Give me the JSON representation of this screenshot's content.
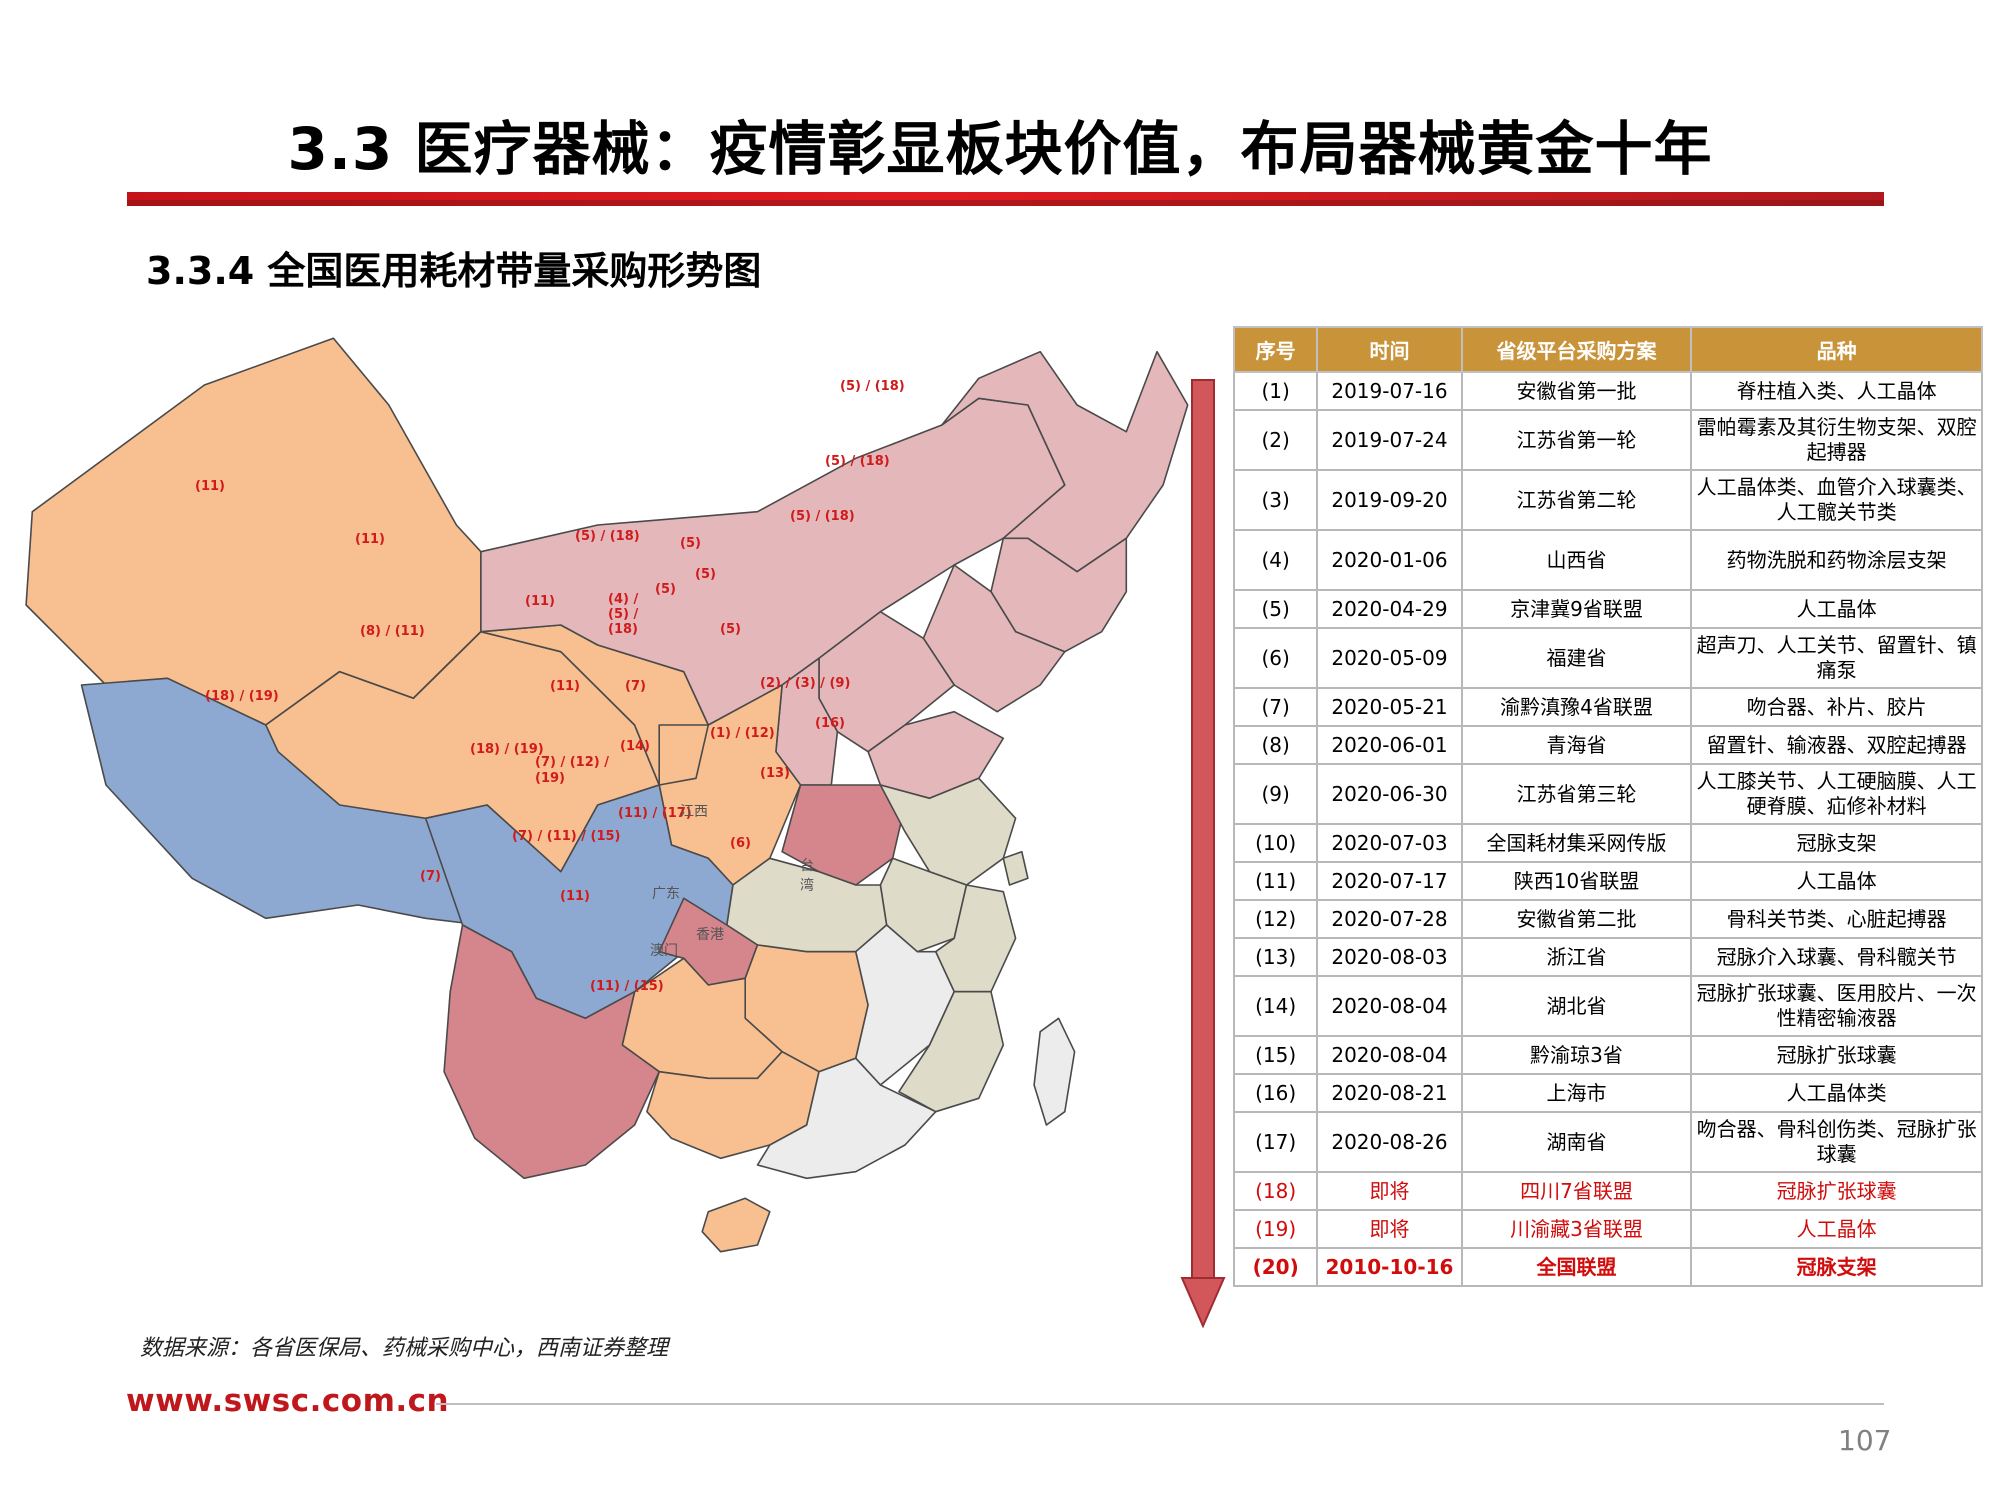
{
  "header": {
    "title": "3.3 医疗器械：疫情彰显板块价值，布局器械黄金十年",
    "subtitle": "3.3.4 全国医用耗材带量采购形势图"
  },
  "map": {
    "labels": {
      "xinjiang": "(11)",
      "qinghai": "(8) / (11)",
      "tibet": "(18) / (19)",
      "gansu": "(11)",
      "ningxia": "(11)",
      "shaanxi": "(11)",
      "inner_mongolia": "(5) / (18)",
      "heilongjiang": "(5) / (18)",
      "jilin": "(5) / (18)",
      "liaoning": "(5) / (18)",
      "shanxi_a": "(4) /",
      "shanxi_b": "(5) /",
      "shanxi_c": "(18)",
      "beijing": "(5)",
      "tianjin": "(5)",
      "hebei": "(5)",
      "shandong": "(5)",
      "henan": "(7)",
      "jiangsu": "(2) / (3) / (9)",
      "anhui": "(1) / (12)",
      "shanghai": "(16)",
      "zhejiang": "(13)",
      "hubei": "(14)",
      "sichuan": "(18) / (19)",
      "chongqing_a": "(7) / (12) /",
      "chongqing_b": "(19)",
      "guizhou": "(7) / (11) / (15)",
      "hunan": "(11) / (17)",
      "jiangxi_name": "江西",
      "fujian": "(6)",
      "yunnan": "(7)",
      "guangxi": "(11)",
      "guangdong_name": "广东",
      "hongkong_name": "香港",
      "macau_name": "澳门",
      "taiwan_name_a": "台",
      "taiwan_name_b": "湾",
      "hainan": "(11) / (15)"
    },
    "colors": {
      "north": "#e4b8bb",
      "west_orange": "#f8bf90",
      "blue": "#8da9d1",
      "dark_red": "#d4868c",
      "khaki": "#dedbc8",
      "grey": "#ececec"
    }
  },
  "table": {
    "headers": [
      "序号",
      "时间",
      "省级平台采购方案",
      "品种"
    ],
    "rows": [
      {
        "no": "(1)",
        "date": "2019-07-16",
        "province": "安徽省第一批",
        "type": "脊柱植入类、人工晶体"
      },
      {
        "no": "(2)",
        "date": "2019-07-24",
        "province": "江苏省第一轮",
        "type": "雷帕霉素及其衍生物支架、双腔起搏器"
      },
      {
        "no": "(3)",
        "date": "2019-09-20",
        "province": "江苏省第二轮",
        "type": "人工晶体类、血管介入球囊类、人工髋关节类"
      },
      {
        "no": "(4)",
        "date": "2020-01-06",
        "province": "山西省",
        "type": "药物洗脱和药物涂层支架"
      },
      {
        "no": "(5)",
        "date": "2020-04-29",
        "province": "京津冀9省联盟",
        "type": "人工晶体"
      },
      {
        "no": "(6)",
        "date": "2020-05-09",
        "province": "福建省",
        "type": "超声刀、人工关节、留置针、镇痛泵"
      },
      {
        "no": "(7)",
        "date": "2020-05-21",
        "province": "渝黔滇豫4省联盟",
        "type": "吻合器、补片、胶片"
      },
      {
        "no": "(8)",
        "date": "2020-06-01",
        "province": "青海省",
        "type": "留置针、输液器、双腔起搏器"
      },
      {
        "no": "(9)",
        "date": "2020-06-30",
        "province": "江苏省第三轮",
        "type": "人工膝关节、人工硬脑膜、人工硬脊膜、疝修补材料"
      },
      {
        "no": "(10)",
        "date": "2020-07-03",
        "province": "全国耗材集采网传版",
        "type": "冠脉支架"
      },
      {
        "no": "(11)",
        "date": "2020-07-17",
        "province": "陕西10省联盟",
        "type": "人工晶体"
      },
      {
        "no": "(12)",
        "date": "2020-07-28",
        "province": "安徽省第二批",
        "type": "骨科关节类、心脏起搏器"
      },
      {
        "no": "(13)",
        "date": "2020-08-03",
        "province": "浙江省",
        "type": "冠脉介入球囊、骨科髋关节"
      },
      {
        "no": "(14)",
        "date": "2020-08-04",
        "province": "湖北省",
        "type": "冠脉扩张球囊、医用胶片、一次性精密输液器"
      },
      {
        "no": "(15)",
        "date": "2020-08-04",
        "province": "黔渝琼3省",
        "type": "冠脉扩张球囊"
      },
      {
        "no": "(16)",
        "date": "2020-08-21",
        "province": "上海市",
        "type": "人工晶体类"
      },
      {
        "no": "(17)",
        "date": "2020-08-26",
        "province": "湖南省",
        "type": "吻合器、骨科创伤类、冠脉扩张球囊"
      },
      {
        "no": "(18)",
        "date": "即将",
        "province": "四川7省联盟",
        "type": "冠脉扩张球囊"
      },
      {
        "no": "(19)",
        "date": "即将",
        "province": "川渝藏3省联盟",
        "type": "人工晶体"
      },
      {
        "no": "(20)",
        "date": "2010-10-16",
        "province": "全国联盟",
        "type": "冠脉支架"
      }
    ]
  },
  "footer": {
    "source": "数据来源：各省医保局、药械采购中心，西南证券整理",
    "url": "www.swsc.com.cn",
    "page": "107"
  }
}
